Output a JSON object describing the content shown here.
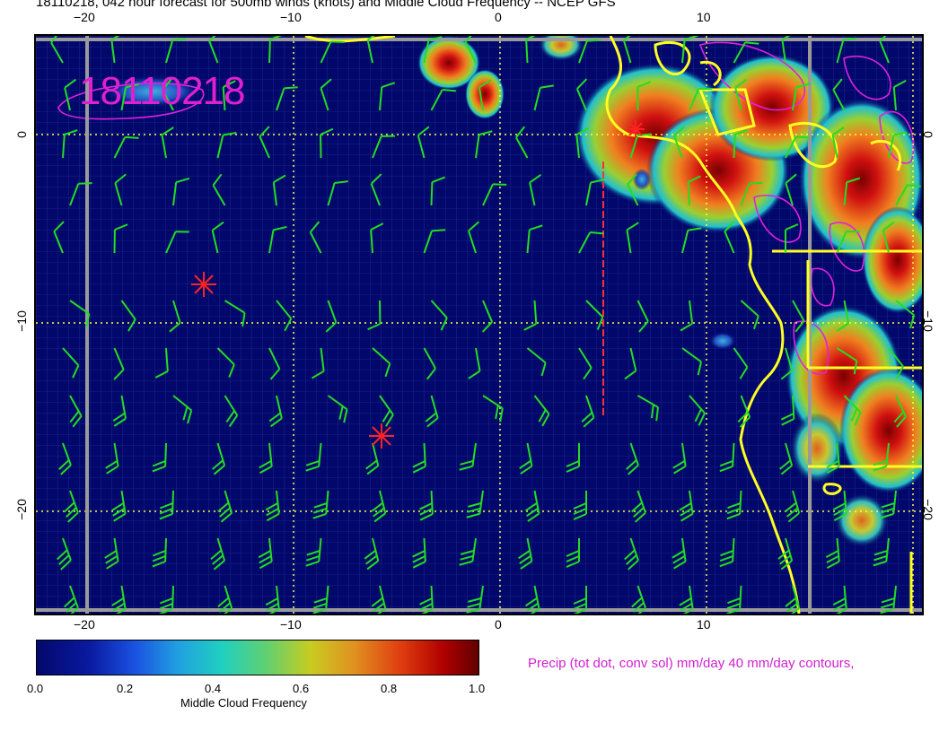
{
  "header": {
    "title": "18110218, 042 hour forecast for 500mb winds (knots) and Middle Cloud Frequency -- NCEP GFS"
  },
  "map": {
    "date_stamp": "18110218",
    "top_axis": [
      "−20",
      "−10",
      "0",
      "10"
    ],
    "bottom_axis": [
      "−20",
      "−10",
      "0",
      "10"
    ],
    "left_axis": [
      "0",
      "−10",
      "−20"
    ],
    "right_axis": [
      "0",
      "−10",
      "−20"
    ],
    "colors": {
      "ocean": "#02086b",
      "grid": "#ffff44",
      "coast": "#ffff22",
      "barbs": "#22dd22",
      "precip": "#e020e0",
      "storm_marker": "#ff2222"
    }
  },
  "colorbar": {
    "ticks": [
      "0.0",
      "0.2",
      "0.4",
      "0.6",
      "0.8",
      "1.0"
    ],
    "title": "Middle Cloud Frequency"
  },
  "legend_note": "Precip (tot dot, conv sol) mm/day 40 mm/day contours,"
}
